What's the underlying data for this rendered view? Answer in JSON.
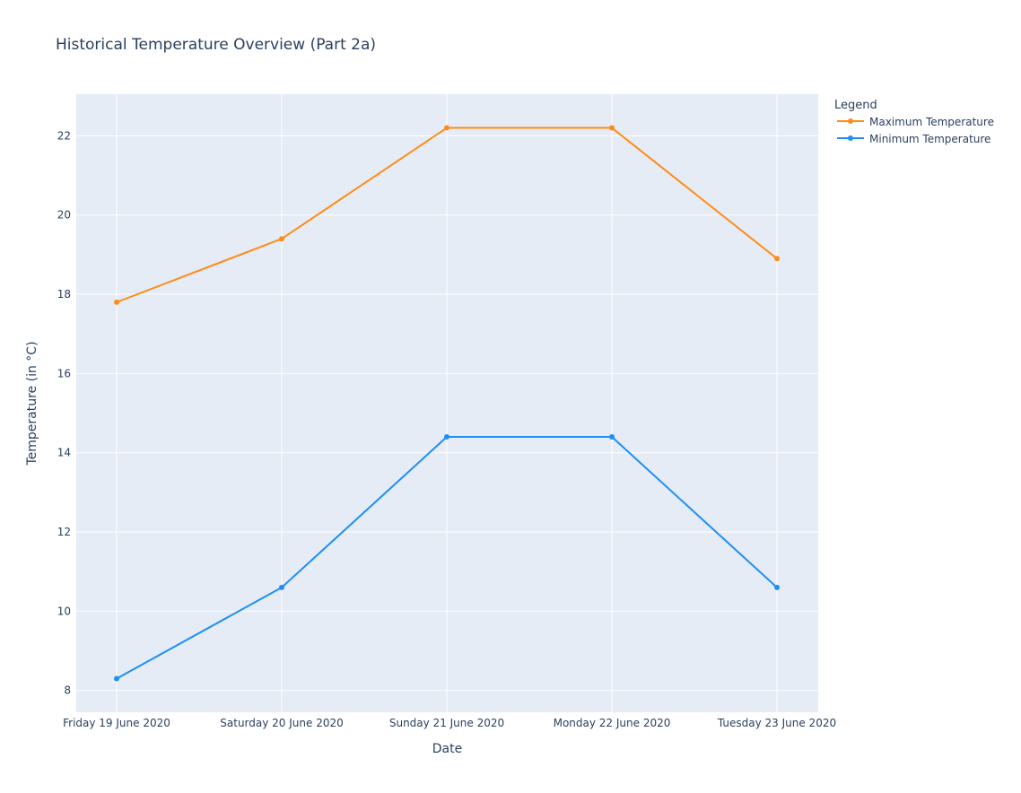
{
  "chart_data": {
    "type": "line",
    "title": "Historical Temperature Overview (Part 2a)",
    "xlabel": "Date",
    "ylabel": "Temperature (in °C)",
    "categories": [
      "Friday 19 June 2020",
      "Saturday 20 June 2020",
      "Sunday 21 June 2020",
      "Monday 22 June 2020",
      "Tuesday 23 June 2020"
    ],
    "series": [
      {
        "name": "Maximum Temperature",
        "color": "#ff8c1a",
        "values": [
          17.8,
          19.4,
          22.2,
          22.2,
          18.9
        ]
      },
      {
        "name": "Minimum Temperature",
        "color": "#1f8ff5",
        "values": [
          8.3,
          10.6,
          14.4,
          14.4,
          10.6
        ]
      }
    ],
    "yticks": [
      8,
      10,
      12,
      14,
      16,
      18,
      20,
      22
    ],
    "ylim": [
      7.45,
      23.05
    ],
    "grid": true,
    "legend": {
      "title": "Legend",
      "placement": "right"
    },
    "colors": {
      "plot_background": "#e5ecf6",
      "grid": "#ffffff",
      "text": "#2a3f5f"
    }
  }
}
